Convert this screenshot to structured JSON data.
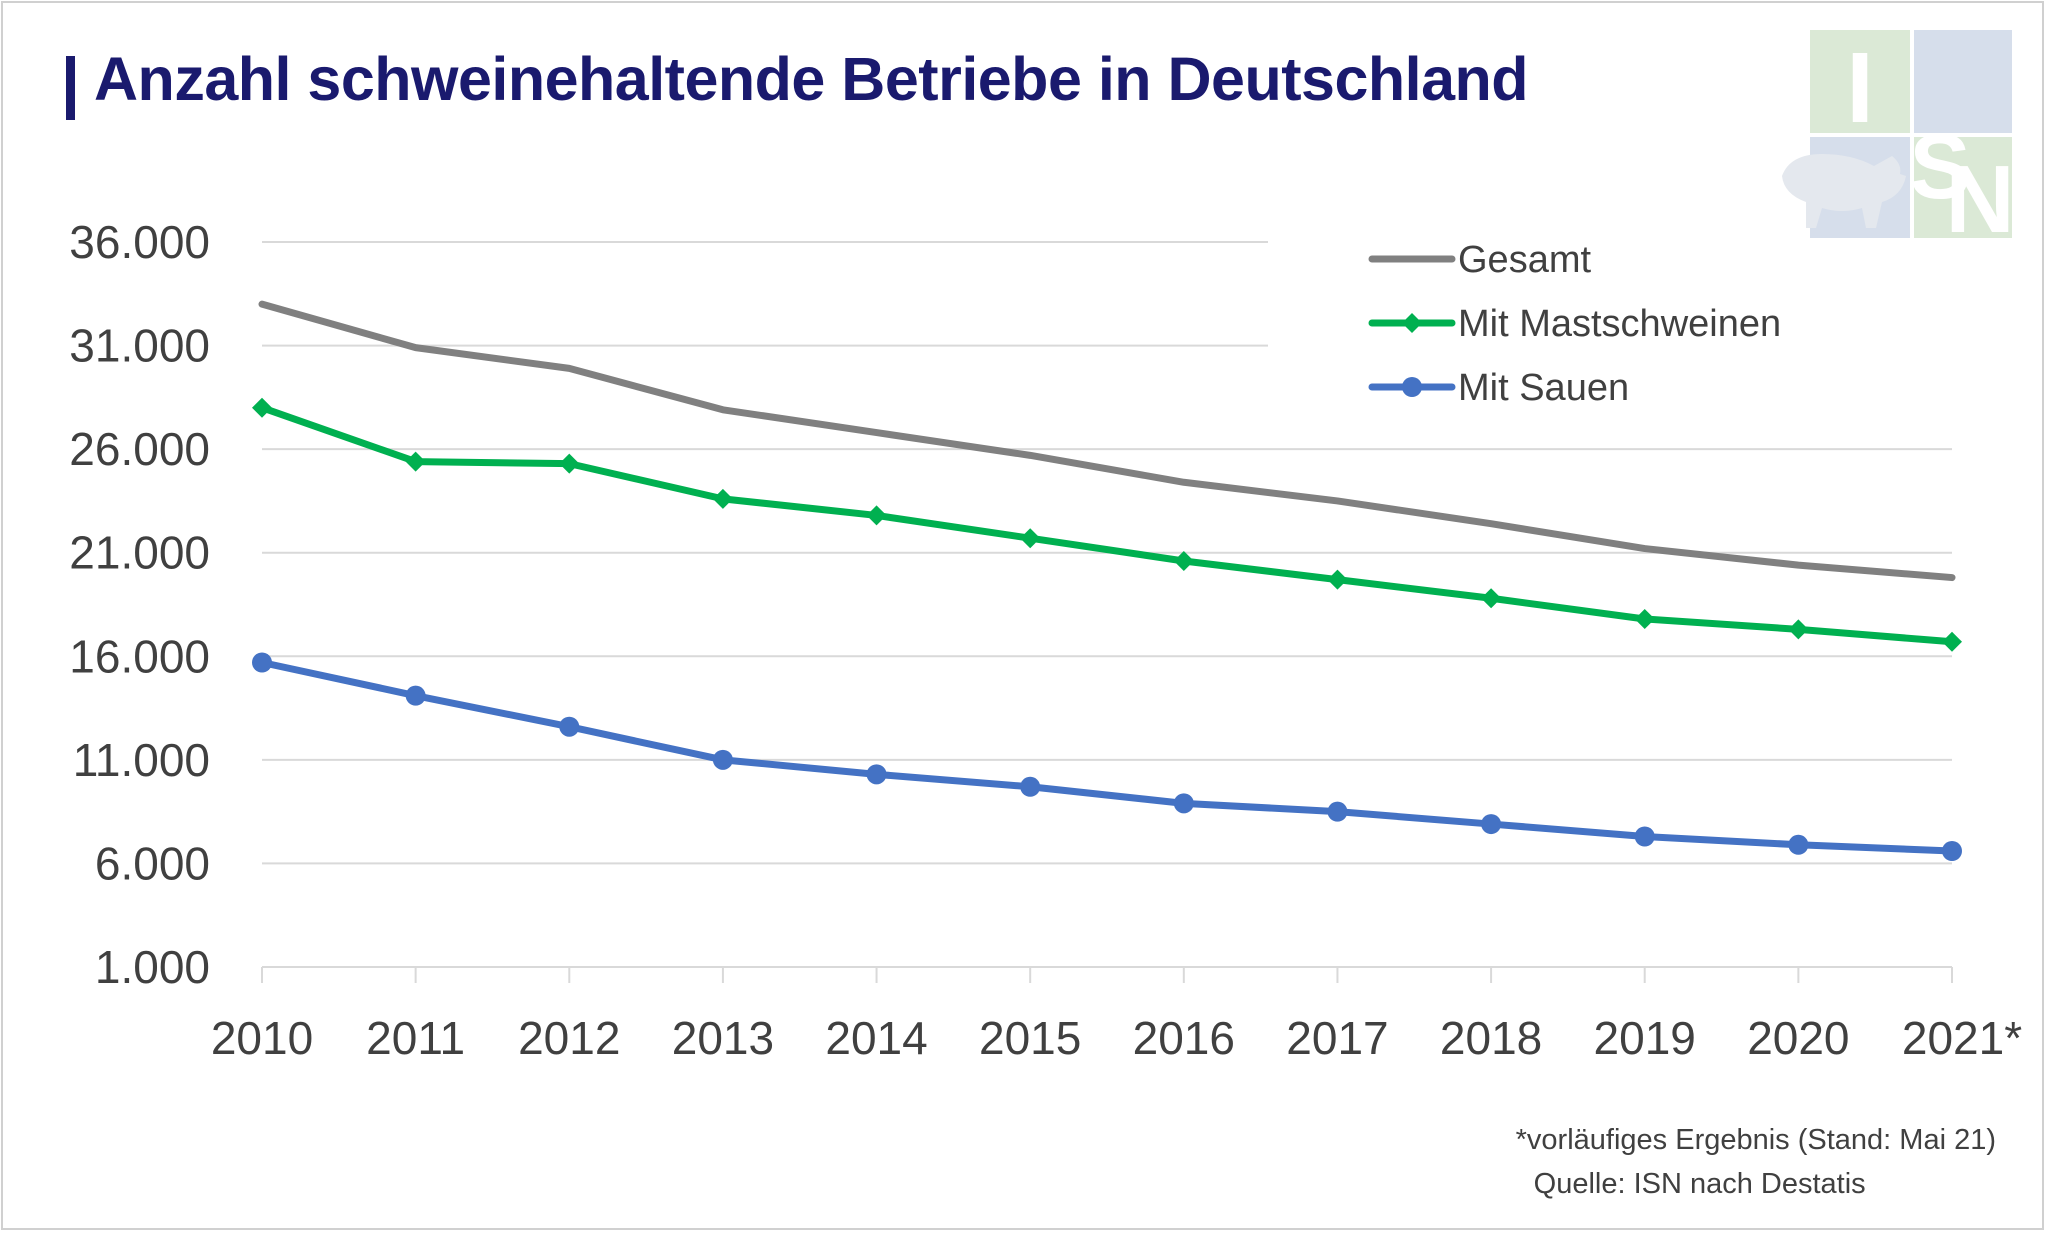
{
  "title": "Anzahl schweinehaltende Betriebe in Deutschland",
  "footnote": {
    "note": "*vorläufiges Ergebnis (Stand: Mai 21)",
    "source": "Quelle: ISN nach Destatis"
  },
  "logo": {
    "text": "ISN",
    "colors": [
      "#dbe9d6",
      "#d6deeb"
    ]
  },
  "colors": {
    "title": "#1a1a6e",
    "gesamt": "#808080",
    "mast": "#00b050",
    "sauen": "#4472c4",
    "grid": "#d9d9d9",
    "axis_text": "#404040"
  },
  "chart_data": {
    "type": "line",
    "title": "Anzahl schweinehaltende Betriebe in Deutschland",
    "xlabel": "",
    "ylabel": "",
    "categories": [
      "2010",
      "2011",
      "2012",
      "2013",
      "2014",
      "2015",
      "2016",
      "2017",
      "2018",
      "2019",
      "2020",
      "2021*"
    ],
    "yticks": [
      "1.000",
      "6.000",
      "11.000",
      "16.000",
      "21.000",
      "26.000",
      "31.000",
      "36.000"
    ],
    "ylim": [
      1000,
      36000
    ],
    "grid": true,
    "legend_position": "top-right",
    "series": [
      {
        "name": "Gesamt",
        "marker": "none",
        "values": [
          33000,
          30900,
          29900,
          27900,
          26800,
          25700,
          24400,
          23500,
          22400,
          21200,
          20400,
          19800
        ]
      },
      {
        "name": "Mit Mastschweinen",
        "marker": "diamond",
        "values": [
          28000,
          25400,
          25300,
          23600,
          22800,
          21700,
          20600,
          19700,
          18800,
          17800,
          17300,
          16700
        ]
      },
      {
        "name": "Mit Sauen",
        "marker": "circle",
        "values": [
          15700,
          14100,
          12600,
          11000,
          10300,
          9700,
          8900,
          8500,
          7900,
          7300,
          6900,
          6600
        ]
      }
    ]
  }
}
